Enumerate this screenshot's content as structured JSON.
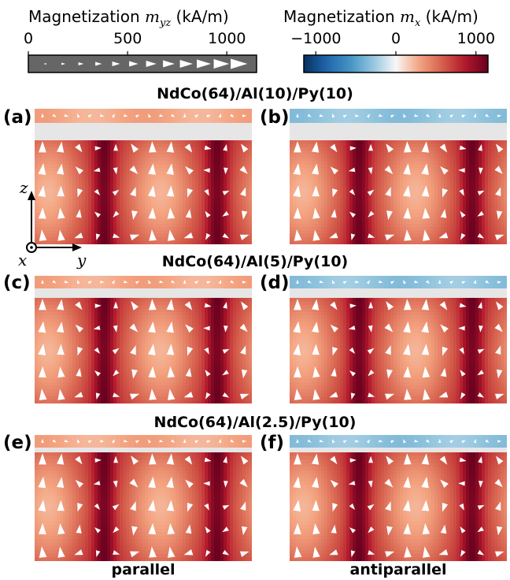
{
  "colorbars": {
    "myz": {
      "title_text": "Magnetization ",
      "title_var": "m",
      "title_sub": "yz",
      "title_unit": " (kA/m)",
      "ticks": [
        "0",
        "500",
        "1000"
      ],
      "tick_values": [
        0,
        500,
        1000
      ],
      "range": [
        0,
        1150
      ],
      "fill_color": "#666666"
    },
    "mx": {
      "title_text": "Magnetization ",
      "title_var": "m",
      "title_sub": "x",
      "title_unit": " (kA/m)",
      "ticks": [
        "−1000",
        "0",
        "1000"
      ],
      "tick_values": [
        -1000,
        0,
        1000
      ],
      "range": [
        -1150,
        1150
      ],
      "colormap": "RdBu_r"
    }
  },
  "rows": [
    {
      "title": "NdCo(64)/Al(10)/Py(10)"
    },
    {
      "title": "NdCo(64)/Al(5)/Py(10)"
    },
    {
      "title": "NdCo(64)/Al(2.5)/Py(10)"
    }
  ],
  "panels": [
    {
      "label": "(a)",
      "py_mx_sign": "parallel"
    },
    {
      "label": "(b)",
      "py_mx_sign": "antiparallel"
    },
    {
      "label": "(c)",
      "py_mx_sign": "parallel"
    },
    {
      "label": "(d)",
      "py_mx_sign": "antiparallel"
    },
    {
      "label": "(e)",
      "py_mx_sign": "parallel"
    },
    {
      "label": "(f)",
      "py_mx_sign": "antiparallel"
    }
  ],
  "axes": {
    "z": "z",
    "x": "x",
    "y": "y"
  },
  "columns": [
    "parallel",
    "antiparallel"
  ],
  "colors": {
    "red_dark": "#67001f",
    "red_mid": "#b2182b",
    "pink": "#f4a582",
    "light": "#fddbc7",
    "blue_mid": "#92c5de",
    "blue": "#4393c3",
    "gray_spacer": "#e6e6e6"
  }
}
